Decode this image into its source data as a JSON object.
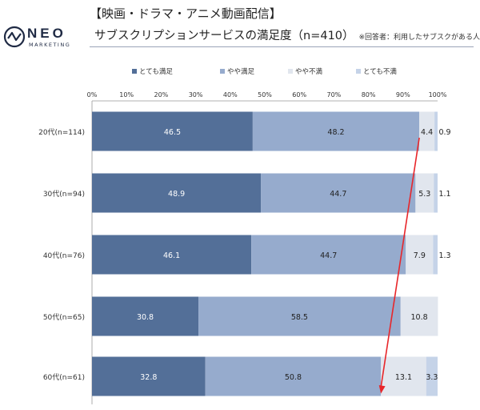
{
  "header": {
    "category": "【映画・ドラマ・アニメ動画配信】",
    "title": "サブスクリプションサービスの満足度（n=410）",
    "note": "※回答者：利用したサブスクがある人"
  },
  "logo": {
    "word": "NEO",
    "sub": "MARKETING",
    "icon": "pulse-circle-icon"
  },
  "chart_data": {
    "type": "bar",
    "orientation": "horizontal-stacked-100",
    "categories": [
      "20代(n=114)",
      "30代(n=94)",
      "40代(n=76)",
      "50代(n=65)",
      "60代(n=61)"
    ],
    "series": [
      {
        "name": "とても満足",
        "color": "#536f98",
        "values": [
          46.5,
          48.9,
          46.1,
          30.8,
          32.8
        ],
        "labels": [
          "46.5",
          "48.9",
          "46.1",
          "30.8",
          "32.8"
        ]
      },
      {
        "name": "やや満足",
        "color": "#96abcd",
        "values": [
          48.2,
          44.7,
          44.7,
          58.5,
          50.8
        ],
        "labels": [
          "48.2",
          "44.7",
          "44.7",
          "58.5",
          "50.8"
        ]
      },
      {
        "name": "やや不満",
        "color": "#e1e6ee",
        "values": [
          4.4,
          5.3,
          7.9,
          10.8,
          13.1
        ],
        "labels": [
          "4.4",
          "5.3",
          "7.9",
          "10.8",
          "13.1"
        ]
      },
      {
        "name": "とても不満",
        "color": "#c5d3e8",
        "values": [
          0.9,
          1.1,
          1.3,
          0,
          3.3
        ],
        "labels": [
          "0.9",
          "1.1",
          "1.3",
          "",
          "3.3"
        ]
      }
    ],
    "xticks": [
      "0%",
      "10%",
      "20%",
      "30%",
      "40%",
      "50%",
      "60%",
      "70%",
      "80%",
      "90%",
      "100%"
    ],
    "xlim": [
      0,
      100
    ],
    "legend_position": "top",
    "annotation": {
      "type": "arrow",
      "color": "#e8262a",
      "from": {
        "category": "20代(n=114)",
        "value": 94.7
      },
      "to": {
        "category": "60代(n=61)",
        "value": 83.6
      }
    }
  }
}
